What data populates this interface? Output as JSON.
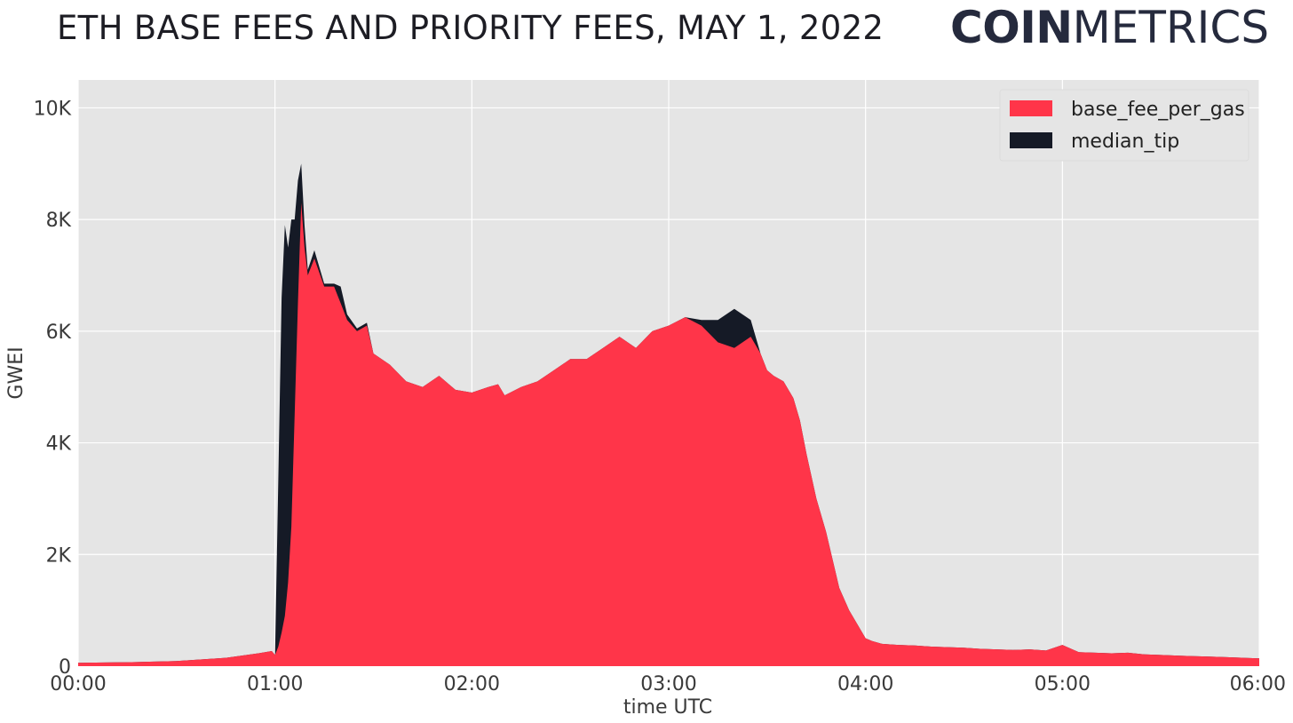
{
  "header": {
    "title": "ETH BASE FEES AND PRIORITY FEES, MAY 1, 2022",
    "brand_bold": "COIN",
    "brand_light": "METRICS"
  },
  "colors": {
    "base_fee": "#ff3549",
    "median_tip": "#151a26",
    "plot_bg": "#e5e5e5",
    "grid": "#ffffff"
  },
  "chart_data": {
    "type": "area",
    "stacked": true,
    "xlabel": "time UTC",
    "ylabel": "GWEI",
    "x_unit": "minutes after 00:00 UTC",
    "xlim": [
      0,
      360
    ],
    "ylim": [
      0,
      10500
    ],
    "x_ticks": [
      0,
      60,
      120,
      180,
      240,
      300,
      360
    ],
    "x_tick_labels": [
      "00:00",
      "01:00",
      "02:00",
      "03:00",
      "04:00",
      "05:00",
      "06:00"
    ],
    "y_ticks": [
      0,
      2000,
      4000,
      6000,
      8000,
      10000
    ],
    "y_tick_labels": [
      "0",
      "2K",
      "4K",
      "6K",
      "8K",
      "10K"
    ],
    "grid": true,
    "legend_position": "top-right",
    "x": [
      0,
      15,
      30,
      45,
      55,
      59,
      60,
      61,
      62,
      63,
      64,
      65,
      66,
      67,
      68,
      69,
      70,
      72,
      75,
      78,
      80,
      82,
      85,
      88,
      90,
      95,
      100,
      105,
      110,
      115,
      120,
      125,
      128,
      130,
      135,
      140,
      145,
      150,
      155,
      160,
      165,
      170,
      175,
      180,
      185,
      190,
      195,
      200,
      205,
      208,
      210,
      212,
      215,
      218,
      220,
      222,
      225,
      228,
      230,
      232,
      235,
      238,
      240,
      242,
      245,
      250,
      255,
      260,
      265,
      270,
      275,
      280,
      285,
      290,
      295,
      300,
      305,
      310,
      315,
      320,
      325,
      330,
      335,
      340,
      345,
      350,
      355,
      360
    ],
    "series": [
      {
        "name": "base_fee_per_gas",
        "values": [
          60,
          70,
          90,
          150,
          230,
          270,
          200,
          350,
          600,
          900,
          1500,
          2500,
          4500,
          6500,
          8300,
          7500,
          7000,
          7300,
          6800,
          6800,
          6500,
          6200,
          6000,
          6100,
          5600,
          5400,
          5100,
          5000,
          5200,
          4950,
          4900,
          5000,
          5050,
          4850,
          5000,
          5100,
          5300,
          5500,
          5500,
          5700,
          5900,
          5700,
          6000,
          6100,
          6250,
          6100,
          5800,
          5700,
          5900,
          5600,
          5300,
          5200,
          5100,
          4800,
          4400,
          3800,
          3000,
          2400,
          1900,
          1400,
          1000,
          700,
          500,
          450,
          400,
          380,
          370,
          350,
          340,
          330,
          310,
          300,
          290,
          300,
          280,
          380,
          250,
          240,
          230,
          240,
          210,
          200,
          190,
          180,
          170,
          160,
          150,
          140
        ]
      },
      {
        "name": "median_tip",
        "values": [
          0,
          0,
          0,
          0,
          0,
          0,
          0,
          3000,
          6000,
          7000,
          6000,
          5500,
          3500,
          2200,
          700,
          400,
          100,
          150,
          50,
          50,
          300,
          100,
          50,
          50,
          0,
          0,
          0,
          0,
          0,
          0,
          0,
          0,
          0,
          0,
          0,
          0,
          0,
          0,
          0,
          0,
          0,
          0,
          0,
          0,
          0,
          100,
          400,
          700,
          300,
          0,
          0,
          0,
          0,
          0,
          0,
          0,
          0,
          0,
          0,
          0,
          0,
          0,
          0,
          0,
          0,
          0,
          0,
          0,
          0,
          0,
          0,
          0,
          0,
          0,
          0,
          0,
          0,
          0,
          0,
          0,
          0,
          0,
          0,
          0,
          0,
          0,
          0,
          0
        ]
      }
    ]
  }
}
